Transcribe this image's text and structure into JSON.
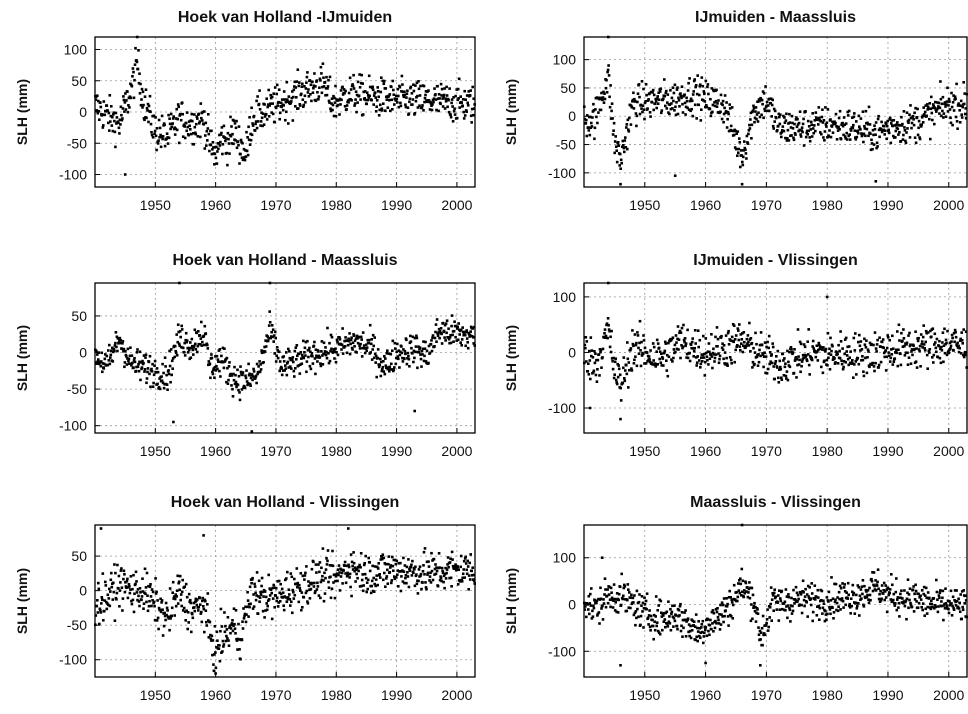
{
  "figure": {
    "ylabel": "SLH (mm)",
    "xticks": [
      "1950",
      "1960",
      "1970",
      "1980",
      "1990",
      "2000"
    ],
    "point_color": "#000000",
    "grid": "dotted"
  },
  "chart_data": [
    {
      "type": "scatter",
      "title": "Hoek van Holland -IJmuiden",
      "ylabel": "SLH (mm)",
      "xlim": [
        1940,
        2003
      ],
      "ylim": [
        -120,
        120
      ],
      "yticks": [
        "100",
        "50",
        "0",
        "-50",
        "-100"
      ],
      "xticks": [
        "1950",
        "1960",
        "1970",
        "1980",
        "1990",
        "2000"
      ],
      "series": [
        {
          "trend": [
            [
              1940,
              10
            ],
            [
              1942,
              -5
            ],
            [
              1944,
              -20
            ],
            [
              1946,
              35
            ],
            [
              1947,
              80
            ],
            [
              1948,
              20
            ],
            [
              1950,
              -30
            ],
            [
              1952,
              -40
            ],
            [
              1954,
              -10
            ],
            [
              1956,
              -20
            ],
            [
              1958,
              -10
            ],
            [
              1959,
              -50
            ],
            [
              1960,
              -70
            ],
            [
              1961,
              -40
            ],
            [
              1962,
              -50
            ],
            [
              1963,
              -30
            ],
            [
              1964,
              -50
            ],
            [
              1965,
              -70
            ],
            [
              1966,
              -10
            ],
            [
              1968,
              0
            ],
            [
              1970,
              10
            ],
            [
              1972,
              20
            ],
            [
              1974,
              30
            ],
            [
              1976,
              40
            ],
            [
              1978,
              45
            ],
            [
              1979,
              20
            ],
            [
              1980,
              15
            ],
            [
              1982,
              30
            ],
            [
              1985,
              25
            ],
            [
              1990,
              20
            ],
            [
              1995,
              18
            ],
            [
              2000,
              15
            ],
            [
              2003,
              12
            ]
          ],
          "spread": 28,
          "outliers": [
            [
              1947,
              120
            ],
            [
              1945,
              -140
            ],
            [
              1981,
              125
            ],
            [
              1945,
              -100
            ]
          ]
        }
      ]
    },
    {
      "type": "scatter",
      "title": "IJmuiden - Maassluis",
      "ylabel": "SLH (mm)",
      "xlim": [
        1940,
        2003
      ],
      "ylim": [
        -125,
        140
      ],
      "yticks": [
        "100",
        "50",
        "0",
        "-50",
        "-100"
      ],
      "xticks": [
        "1950",
        "1960",
        "1970",
        "1980",
        "1990",
        "2000"
      ],
      "series": [
        {
          "trend": [
            [
              1940,
              -10
            ],
            [
              1942,
              0
            ],
            [
              1943,
              40
            ],
            [
              1944,
              70
            ],
            [
              1945,
              -40
            ],
            [
              1946,
              -80
            ],
            [
              1948,
              20
            ],
            [
              1950,
              25
            ],
            [
              1955,
              30
            ],
            [
              1958,
              40
            ],
            [
              1960,
              30
            ],
            [
              1963,
              20
            ],
            [
              1965,
              -40
            ],
            [
              1966,
              -70
            ],
            [
              1968,
              10
            ],
            [
              1970,
              30
            ],
            [
              1972,
              -20
            ],
            [
              1975,
              -20
            ],
            [
              1980,
              -15
            ],
            [
              1985,
              -20
            ],
            [
              1988,
              -30
            ],
            [
              1990,
              -20
            ],
            [
              1995,
              -10
            ],
            [
              1998,
              10
            ],
            [
              2000,
              20
            ],
            [
              2003,
              20
            ]
          ],
          "spread": 30,
          "outliers": [
            [
              1944,
              140
            ],
            [
              1946,
              -120
            ],
            [
              1966,
              -120
            ],
            [
              1955,
              -105
            ],
            [
              1988,
              -115
            ]
          ]
        }
      ]
    },
    {
      "type": "scatter",
      "title": "Hoek van Holland - Maassluis",
      "ylabel": "SLH (mm)",
      "xlim": [
        1940,
        2003
      ],
      "ylim": [
        -110,
        95
      ],
      "yticks": [
        "50",
        "0",
        "-50",
        "-100"
      ],
      "xticks": [
        "1950",
        "1960",
        "1970",
        "1980",
        "1990",
        "2000"
      ],
      "series": [
        {
          "trend": [
            [
              1940,
              0
            ],
            [
              1942,
              -20
            ],
            [
              1944,
              20
            ],
            [
              1946,
              -15
            ],
            [
              1948,
              -20
            ],
            [
              1950,
              -25
            ],
            [
              1952,
              -30
            ],
            [
              1954,
              20
            ],
            [
              1956,
              10
            ],
            [
              1958,
              30
            ],
            [
              1959,
              -20
            ],
            [
              1961,
              -10
            ],
            [
              1963,
              -35
            ],
            [
              1965,
              -40
            ],
            [
              1967,
              -30
            ],
            [
              1969,
              30
            ],
            [
              1971,
              -20
            ],
            [
              1974,
              -10
            ],
            [
              1977,
              0
            ],
            [
              1980,
              5
            ],
            [
              1983,
              15
            ],
            [
              1986,
              5
            ],
            [
              1988,
              -20
            ],
            [
              1990,
              0
            ],
            [
              1993,
              5
            ],
            [
              1995,
              -5
            ],
            [
              1997,
              30
            ],
            [
              2000,
              25
            ],
            [
              2003,
              22
            ]
          ],
          "spread": 20,
          "outliers": [
            [
              1954,
              95
            ],
            [
              1953,
              -95
            ],
            [
              1966,
              -108
            ],
            [
              1969,
              95
            ],
            [
              1993,
              -80
            ]
          ]
        }
      ]
    },
    {
      "type": "scatter",
      "title": "IJmuiden - Vlissingen",
      "ylabel": "SLH (mm)",
      "xlim": [
        1940,
        2003
      ],
      "ylim": [
        -145,
        125
      ],
      "yticks": [
        "100",
        "0",
        "-100"
      ],
      "xticks": [
        "1950",
        "1960",
        "1970",
        "1980",
        "1990",
        "2000"
      ],
      "series": [
        {
          "trend": [
            [
              1940,
              0
            ],
            [
              1942,
              -20
            ],
            [
              1944,
              40
            ],
            [
              1945,
              -30
            ],
            [
              1946,
              -60
            ],
            [
              1948,
              10
            ],
            [
              1950,
              0
            ],
            [
              1953,
              -10
            ],
            [
              1956,
              20
            ],
            [
              1960,
              0
            ],
            [
              1963,
              10
            ],
            [
              1966,
              20
            ],
            [
              1968,
              5
            ],
            [
              1970,
              -10
            ],
            [
              1972,
              -20
            ],
            [
              1975,
              -10
            ],
            [
              1978,
              0
            ],
            [
              1980,
              -5
            ],
            [
              1983,
              0
            ],
            [
              1985,
              -5
            ],
            [
              1990,
              5
            ],
            [
              1995,
              10
            ],
            [
              2000,
              15
            ],
            [
              2003,
              10
            ]
          ],
          "spread": 35,
          "outliers": [
            [
              1944,
              125
            ],
            [
              1946,
              -120
            ],
            [
              1941,
              -100
            ],
            [
              1980,
              100
            ]
          ]
        }
      ]
    },
    {
      "type": "scatter",
      "title": "Hoek van Holland - Vlissingen",
      "ylabel": "SLH (mm)",
      "xlim": [
        1940,
        2003
      ],
      "ylim": [
        -125,
        95
      ],
      "yticks": [
        "50",
        "0",
        "-50",
        "-100"
      ],
      "xticks": [
        "1950",
        "1960",
        "1970",
        "1980",
        "1990",
        "2000"
      ],
      "series": [
        {
          "trend": [
            [
              1940,
              -20
            ],
            [
              1942,
              -10
            ],
            [
              1944,
              10
            ],
            [
              1946,
              0
            ],
            [
              1948,
              0
            ],
            [
              1950,
              -20
            ],
            [
              1952,
              -40
            ],
            [
              1954,
              0
            ],
            [
              1956,
              -30
            ],
            [
              1958,
              -20
            ],
            [
              1959,
              -60
            ],
            [
              1960,
              -90
            ],
            [
              1961,
              -70
            ],
            [
              1963,
              -50
            ],
            [
              1964,
              -70
            ],
            [
              1966,
              0
            ],
            [
              1968,
              -10
            ],
            [
              1970,
              -10
            ],
            [
              1972,
              0
            ],
            [
              1975,
              10
            ],
            [
              1978,
              20
            ],
            [
              1980,
              15
            ],
            [
              1982,
              35
            ],
            [
              1985,
              25
            ],
            [
              1990,
              30
            ],
            [
              1995,
              25
            ],
            [
              2000,
              30
            ],
            [
              2003,
              28
            ]
          ],
          "spread": 28,
          "outliers": [
            [
              1941,
              90
            ],
            [
              1982,
              90
            ],
            [
              1960,
              -120
            ],
            [
              1958,
              80
            ]
          ]
        }
      ]
    },
    {
      "type": "scatter",
      "title": "Maassluis - Vlissingen",
      "ylabel": "SLH (mm)",
      "xlim": [
        1940,
        2003
      ],
      "ylim": [
        -155,
        170
      ],
      "yticks": [
        "100",
        "0",
        "-100"
      ],
      "xticks": [
        "1950",
        "1960",
        "1970",
        "1980",
        "1990",
        "2000"
      ],
      "series": [
        {
          "trend": [
            [
              1940,
              10
            ],
            [
              1942,
              -10
            ],
            [
              1944,
              20
            ],
            [
              1946,
              20
            ],
            [
              1948,
              0
            ],
            [
              1950,
              -20
            ],
            [
              1953,
              -30
            ],
            [
              1955,
              -20
            ],
            [
              1957,
              -40
            ],
            [
              1959,
              -60
            ],
            [
              1960,
              -40
            ],
            [
              1962,
              -30
            ],
            [
              1964,
              0
            ],
            [
              1966,
              40
            ],
            [
              1968,
              10
            ],
            [
              1969,
              -70
            ],
            [
              1971,
              0
            ],
            [
              1975,
              10
            ],
            [
              1980,
              10
            ],
            [
              1985,
              20
            ],
            [
              1988,
              40
            ],
            [
              1990,
              20
            ],
            [
              1995,
              10
            ],
            [
              1998,
              0
            ],
            [
              2000,
              0
            ],
            [
              2003,
              -5
            ]
          ],
          "spread": 35,
          "outliers": [
            [
              1966,
              170
            ],
            [
              1969,
              -130
            ],
            [
              1960,
              -125
            ],
            [
              1946,
              -130
            ],
            [
              1943,
              100
            ]
          ]
        }
      ]
    }
  ]
}
